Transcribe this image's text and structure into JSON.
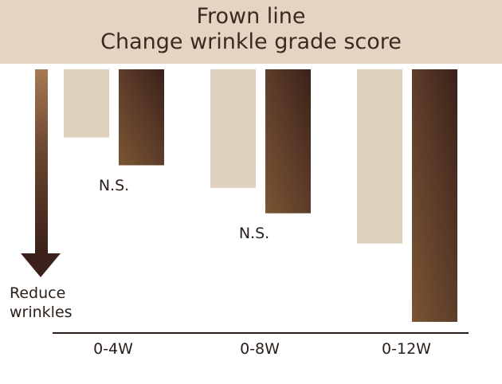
{
  "chart_data": {
    "type": "bar",
    "title": "Frown line",
    "subtitle": "Change wrinkle grade score",
    "categories": [
      "0-4W",
      "0-8W",
      "0-12W"
    ],
    "series": [
      {
        "values": [
          -0.27,
          -0.47,
          -0.69
        ],
        "color": "#dfd3bf"
      },
      {
        "values": [
          -0.38,
          -0.57,
          -1.0
        ],
        "color": "#6b4530"
      }
    ],
    "ylim": [
      -1.0,
      0
    ],
    "annotations": [
      "N.S.",
      "N.S."
    ],
    "arrow_label": [
      "Reduce",
      "wrinkles"
    ],
    "grid": false,
    "legend": "none"
  }
}
